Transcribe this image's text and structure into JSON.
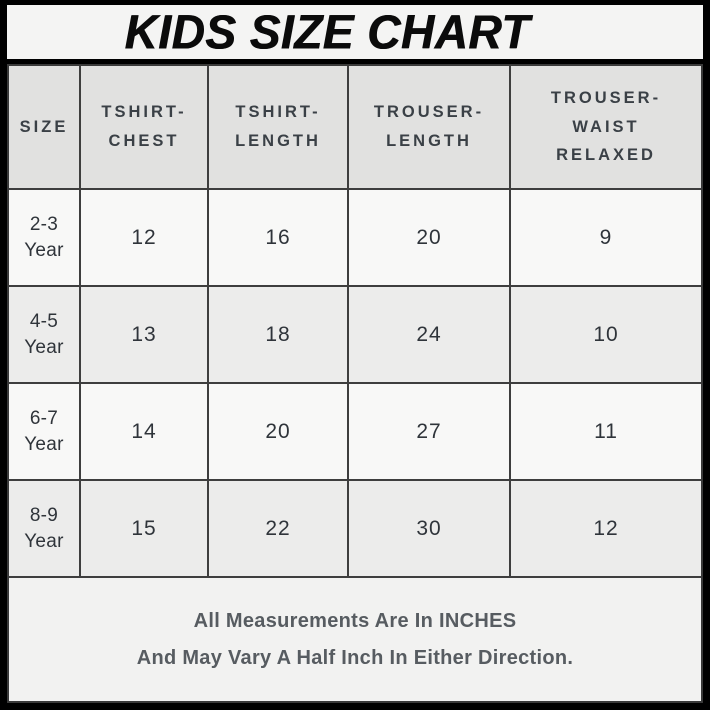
{
  "title": "KIDS SIZE CHART",
  "table": {
    "headers": [
      "SIZE",
      "TSHIRT-\nCHEST",
      "TSHIRT-\nLENGTH",
      "TROUSER-\nLENGTH",
      "TROUSER-\nWAIST\nRELAXED"
    ],
    "row_labels": [
      "2-3\nYear",
      "4-5\nYear",
      "6-7\nYear",
      "8-9\nYear"
    ]
  },
  "footer": {
    "line1": "All Measurements Are In INCHES",
    "line2": "And May Vary A Half Inch In Either Direction."
  },
  "colors": {
    "frame": "#000000",
    "title_bg": "#f4f4f3",
    "title_text": "#0b0b0b",
    "header_bg": "#e1e1e0",
    "row_light": "#f8f8f7",
    "row_shaded": "#ececeb",
    "footer_bg": "#f2f2f1",
    "grid_line": "#3e3e3e",
    "cell_text": "#2f343a",
    "note_text": "#575c61"
  },
  "chart_data": {
    "type": "table",
    "title": "KIDS SIZE CHART",
    "columns": [
      "SIZE",
      "TSHIRT-CHEST",
      "TSHIRT-LENGTH",
      "TROUSER-LENGTH",
      "TROUSER-WAIST RELAXED"
    ],
    "rows": [
      [
        "2-3 Year",
        12,
        16,
        20,
        9
      ],
      [
        "4-5 Year",
        13,
        18,
        24,
        10
      ],
      [
        "6-7 Year",
        14,
        20,
        27,
        11
      ],
      [
        "8-9 Year",
        15,
        22,
        30,
        12
      ]
    ],
    "units": "INCHES",
    "notes": [
      "All Measurements Are In INCHES",
      "And May Vary A Half Inch In Either Direction."
    ]
  }
}
